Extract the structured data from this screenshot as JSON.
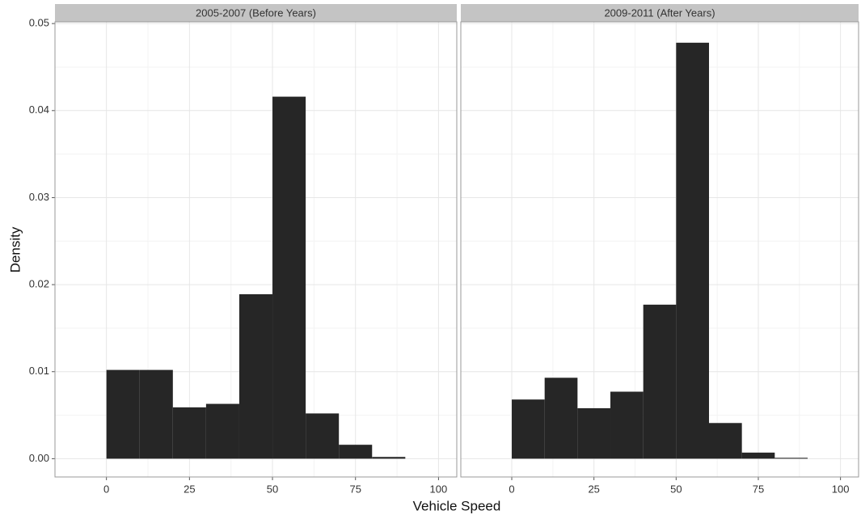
{
  "chart_data": [
    {
      "type": "histogram",
      "title": "2005-2007 (Before Years)",
      "xlabel": "Vehicle Speed",
      "ylabel": "Density",
      "bins": [
        0,
        10,
        20,
        30,
        40,
        50,
        60,
        70,
        80,
        90
      ],
      "values": [
        0.0102,
        0.0102,
        0.0059,
        0.0063,
        0.0189,
        0.0416,
        0.0052,
        0.0016,
        0.0002
      ],
      "color": "#262626",
      "xlim": [
        -15.5,
        105.5
      ],
      "ylim": [
        -0.0021,
        0.0502
      ],
      "xticks": [
        0,
        25,
        50,
        75,
        100
      ],
      "yticks": [
        {
          "value": 0,
          "label": "0.00"
        },
        0.01,
        0.02,
        0.03,
        0.04,
        0.05
      ],
      "grid": true
    },
    {
      "type": "histogram",
      "title": "2009-2011 (After Years)",
      "bins": [
        0,
        10,
        20,
        30,
        40,
        50,
        60,
        70,
        80,
        90
      ],
      "values": [
        0.0068,
        0.0093,
        0.0058,
        0.0077,
        0.0177,
        0.0478,
        0.0041,
        0.0007,
        0.0001
      ],
      "color": "#262626",
      "xlim": [
        -15.5,
        105.5
      ],
      "ylim": [
        -0.0021,
        0.0502
      ],
      "xticks": [
        0,
        25,
        50,
        75,
        100
      ],
      "yticks": [
        {
          "value": 0,
          "label": "0.00"
        },
        0.01,
        0.02,
        0.03,
        0.04,
        0.05
      ],
      "grid": true
    }
  ]
}
